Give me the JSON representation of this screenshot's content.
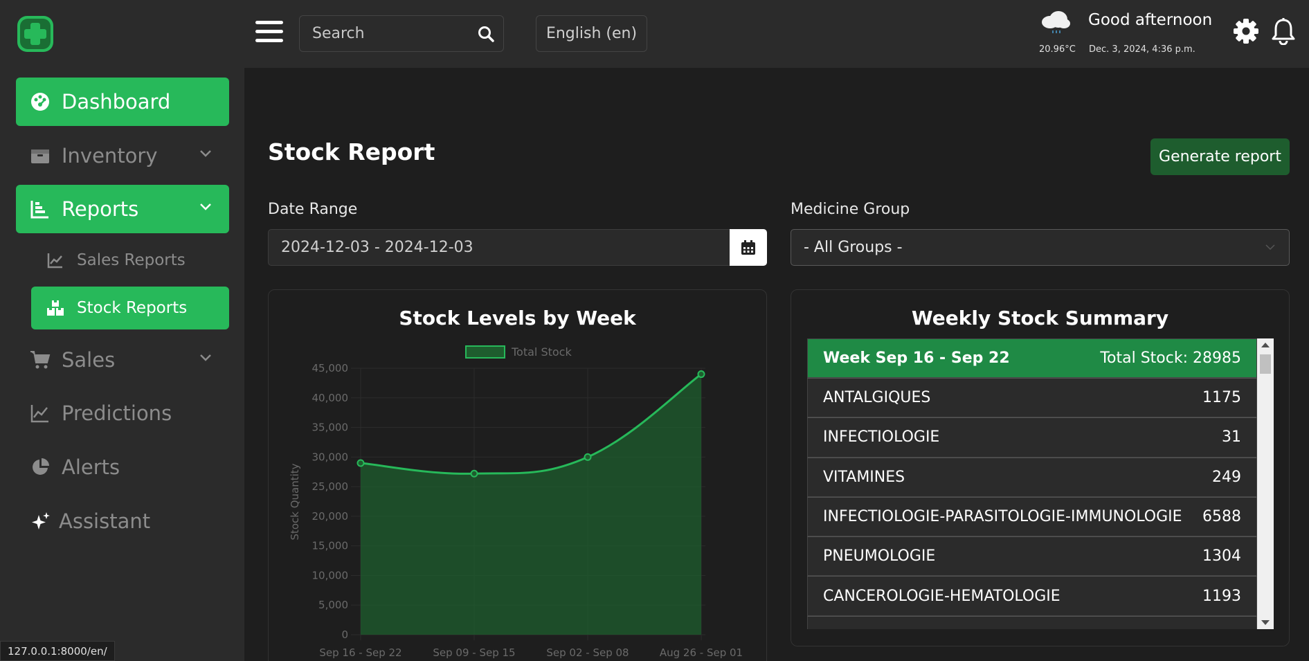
{
  "sidebar": {
    "items": [
      {
        "label": "Dashboard",
        "icon": "palette-gauge-icon"
      },
      {
        "label": "Inventory",
        "icon": "box-icon"
      },
      {
        "label": "Reports",
        "icon": "bar-chart-icon"
      },
      {
        "label": "Sales Reports",
        "icon": "line-chart-icon"
      },
      {
        "label": "Stock Reports",
        "icon": "boxes-icon"
      },
      {
        "label": "Sales",
        "icon": "cart-icon"
      },
      {
        "label": "Predictions",
        "icon": "trend-icon"
      },
      {
        "label": "Alerts",
        "icon": "pie-icon"
      },
      {
        "label": "Assistant",
        "icon": "sparkle-icon"
      }
    ]
  },
  "header": {
    "search_placeholder": "Search",
    "language": "English (en)",
    "temperature": "20.96°C",
    "greeting": "Good afternoon",
    "datetime": "Dec. 3, 2024, 4:36 p.m."
  },
  "main": {
    "title": "Stock Report",
    "generate_label": "Generate report",
    "date_range_label": "Date Range",
    "date_range_value": "2024-12-03 - 2024-12-03",
    "medicine_group_label": "Medicine Group",
    "medicine_group_value": "- All Groups -"
  },
  "summary": {
    "title": "Weekly Stock Summary",
    "week": "Week Sep 16 - Sep 22",
    "total": "Total Stock: 28985",
    "rows": [
      {
        "name": "ANTALGIQUES",
        "value": "1175"
      },
      {
        "name": "INFECTIOLOGIE",
        "value": "31"
      },
      {
        "name": "VITAMINES",
        "value": "249"
      },
      {
        "name": "INFECTIOLOGIE-PARASITOLOGIE-IMMUNOLOGIE",
        "value": "6588"
      },
      {
        "name": "PNEUMOLOGIE",
        "value": "1304"
      },
      {
        "name": "CANCEROLOGIE-HEMATOLOGIE",
        "value": "1193"
      }
    ]
  },
  "status_url": "127.0.0.1:8000/en/",
  "colors": {
    "accent": "#27b95a",
    "dark_accent": "#1e5d2e",
    "background": "#1e1e1e",
    "panel": "#2b2b2b"
  },
  "chart_data": {
    "type": "area",
    "title": "Stock Levels by Week",
    "legend": [
      "Total Stock"
    ],
    "legend_position": "top",
    "xlabel": "",
    "ylabel": "Stock Quantity",
    "categories": [
      "Sep 16 - Sep 22",
      "Sep 09 - Sep 15",
      "Sep 02 - Sep 08",
      "Aug 26 - Sep 01"
    ],
    "series": [
      {
        "name": "Total Stock",
        "values": [
          28985,
          27200,
          30000,
          44000
        ]
      }
    ],
    "ylim": [
      0,
      45000
    ],
    "yticks": [
      "45,000",
      "40,000",
      "35,000",
      "30,000",
      "25,000",
      "20,000",
      "15,000",
      "10,000",
      "5,000",
      "0"
    ],
    "grid": true
  }
}
